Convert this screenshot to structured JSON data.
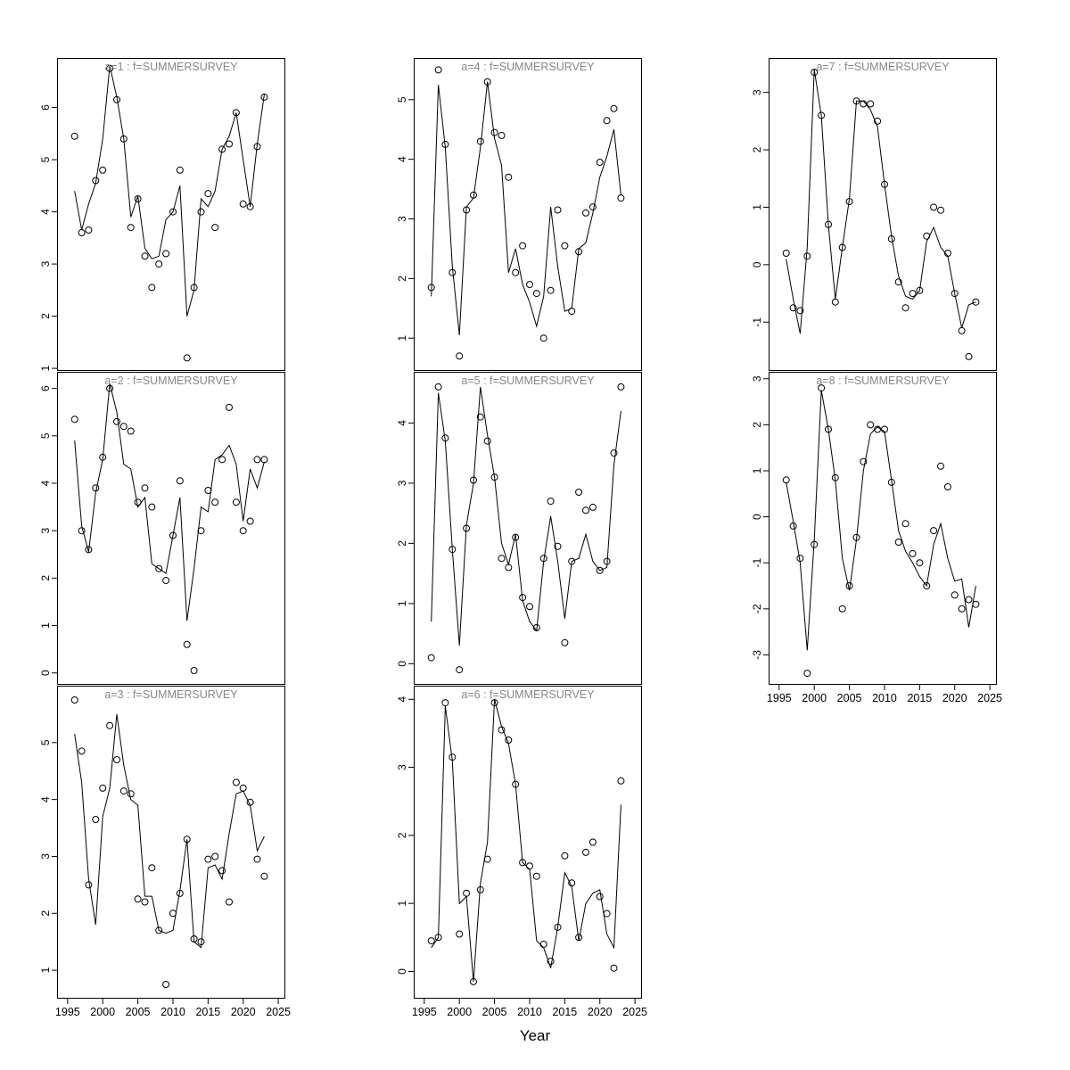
{
  "chart_data": {
    "type": "line+scatter",
    "xlabel": "Year",
    "x_ticks": [
      1995,
      2000,
      2005,
      2010,
      2015,
      2020,
      2025
    ],
    "xlim": [
      1993.5,
      2026
    ],
    "years": [
      1996,
      1997,
      1998,
      1999,
      2000,
      2001,
      2002,
      2003,
      2004,
      2005,
      2006,
      2007,
      2008,
      2009,
      2010,
      2011,
      2012,
      2013,
      2014,
      2015,
      2016,
      2017,
      2018,
      2019,
      2020,
      2021,
      2022,
      2023
    ],
    "colors": {
      "title": "#878787",
      "line": "#000000",
      "points": "#000000",
      "axis": "#000000"
    },
    "panels": [
      {
        "title": "a=1 : f=SUMMERSURVEY",
        "ylim": [
          0.95,
          6.95
        ],
        "yticks": [
          1,
          2,
          3,
          4,
          5,
          6
        ],
        "x_axis": false,
        "observed": [
          5.45,
          3.6,
          3.65,
          4.6,
          4.8,
          6.75,
          6.15,
          5.4,
          3.7,
          4.25,
          3.15,
          2.55,
          3.0,
          3.2,
          4.0,
          4.8,
          1.2,
          2.55,
          4.0,
          4.35,
          3.7,
          5.2,
          5.3,
          5.9,
          4.15,
          4.1,
          5.25,
          6.2
        ],
        "fitted": [
          4.4,
          3.65,
          4.15,
          4.55,
          5.4,
          6.8,
          6.2,
          5.4,
          3.9,
          4.3,
          3.3,
          3.1,
          3.15,
          3.85,
          4.0,
          4.5,
          2.0,
          2.5,
          4.25,
          4.1,
          4.4,
          5.2,
          5.45,
          5.9,
          5.0,
          4.1,
          5.3,
          6.25
        ]
      },
      {
        "title": "a=2 : f=SUMMERSURVEY",
        "ylim": [
          -0.25,
          6.35
        ],
        "yticks": [
          0,
          1,
          2,
          3,
          4,
          5,
          6
        ],
        "x_axis": false,
        "observed": [
          5.35,
          3.0,
          2.6,
          3.9,
          4.55,
          6.0,
          5.3,
          5.2,
          5.1,
          3.6,
          3.9,
          3.5,
          2.2,
          1.95,
          2.9,
          4.05,
          0.6,
          0.05,
          3.0,
          3.85,
          3.6,
          4.5,
          5.6,
          3.6,
          3.0,
          3.2,
          4.5,
          4.5
        ],
        "fitted": [
          4.9,
          3.1,
          2.55,
          3.8,
          4.5,
          6.1,
          5.5,
          4.4,
          4.3,
          3.5,
          3.7,
          2.3,
          2.2,
          2.1,
          2.9,
          3.7,
          1.1,
          2.2,
          3.5,
          3.4,
          4.5,
          4.6,
          4.8,
          4.4,
          3.2,
          4.3,
          3.9,
          4.45
        ]
      },
      {
        "title": "a=3 : f=SUMMERSURVEY",
        "ylim": [
          0.5,
          6.0
        ],
        "yticks": [
          1,
          2,
          3,
          4,
          5
        ],
        "x_axis": true,
        "observed": [
          5.75,
          4.85,
          2.5,
          3.65,
          4.2,
          5.3,
          4.7,
          4.15,
          4.1,
          2.25,
          2.2,
          2.8,
          1.7,
          0.75,
          2.0,
          2.35,
          3.3,
          1.55,
          1.5,
          2.95,
          3.0,
          2.75,
          2.2,
          4.3,
          4.2,
          3.95,
          2.95,
          2.65
        ],
        "fitted": [
          5.15,
          4.3,
          2.6,
          1.8,
          3.7,
          4.2,
          5.5,
          4.6,
          4.0,
          3.9,
          2.3,
          2.3,
          1.7,
          1.65,
          1.7,
          2.4,
          3.3,
          1.5,
          1.4,
          2.8,
          2.85,
          2.6,
          3.4,
          4.1,
          4.15,
          3.9,
          3.1,
          3.35
        ]
      },
      {
        "title": "a=4 : f=SUMMERSURVEY",
        "ylim": [
          0.45,
          5.7
        ],
        "yticks": [
          1,
          2,
          3,
          4,
          5
        ],
        "x_axis": false,
        "observed": [
          1.85,
          5.5,
          4.25,
          2.1,
          0.7,
          3.15,
          3.4,
          4.3,
          5.3,
          4.45,
          4.4,
          3.7,
          2.1,
          2.55,
          1.9,
          1.75,
          1.0,
          1.8,
          3.15,
          2.55,
          1.45,
          2.45,
          3.1,
          3.2,
          3.95,
          4.65,
          4.85,
          3.35
        ],
        "fitted": [
          1.7,
          5.25,
          4.2,
          2.2,
          1.05,
          3.2,
          3.35,
          4.2,
          5.3,
          4.35,
          3.9,
          2.1,
          2.5,
          1.9,
          1.6,
          1.2,
          1.7,
          3.2,
          2.2,
          1.45,
          1.5,
          2.5,
          2.6,
          3.1,
          3.7,
          4.05,
          4.5,
          3.4
        ]
      },
      {
        "title": "a=5 : f=SUMMERSURVEY",
        "ylim": [
          -0.35,
          4.85
        ],
        "yticks": [
          0,
          1,
          2,
          3,
          4
        ],
        "x_axis": false,
        "observed": [
          0.1,
          4.6,
          3.75,
          1.9,
          -0.1,
          2.25,
          3.05,
          4.1,
          3.7,
          3.1,
          1.75,
          1.6,
          2.1,
          1.1,
          0.95,
          0.6,
          1.75,
          2.7,
          1.95,
          0.35,
          1.7,
          2.85,
          2.55,
          2.6,
          1.55,
          1.7,
          3.5,
          4.6
        ],
        "fitted": [
          0.7,
          4.5,
          3.7,
          1.9,
          0.3,
          2.3,
          3.0,
          4.6,
          3.8,
          3.1,
          2.0,
          1.65,
          2.15,
          1.05,
          0.7,
          0.55,
          1.7,
          2.45,
          1.7,
          0.75,
          1.7,
          1.75,
          2.15,
          1.7,
          1.55,
          1.6,
          3.3,
          4.2
        ]
      },
      {
        "title": "a=6 : f=SUMMERSURVEY",
        "ylim": [
          -0.4,
          4.2
        ],
        "yticks": [
          0,
          1,
          2,
          3,
          4
        ],
        "x_axis": true,
        "observed": [
          0.45,
          0.5,
          3.95,
          3.15,
          0.55,
          1.15,
          -0.15,
          1.2,
          1.65,
          3.95,
          3.55,
          3.4,
          2.75,
          1.6,
          1.55,
          1.4,
          0.4,
          0.15,
          0.65,
          1.7,
          1.3,
          0.5,
          1.75,
          1.9,
          1.1,
          0.85,
          0.05,
          2.8
        ],
        "fitted": [
          0.35,
          0.5,
          3.9,
          3.1,
          1.0,
          1.1,
          -0.15,
          1.3,
          1.9,
          4.0,
          3.6,
          3.35,
          2.75,
          1.6,
          1.5,
          0.45,
          0.35,
          0.05,
          0.65,
          1.45,
          1.25,
          0.45,
          1.0,
          1.15,
          1.2,
          0.55,
          0.35,
          2.45
        ]
      },
      {
        "title": "a=7 : f=SUMMERSURVEY",
        "ylim": [
          -1.85,
          3.6
        ],
        "yticks": [
          -1,
          0,
          1,
          2,
          3
        ],
        "x_axis": false,
        "observed": [
          0.2,
          -0.75,
          -0.8,
          0.15,
          3.35,
          2.6,
          0.7,
          -0.65,
          0.3,
          1.1,
          2.85,
          2.8,
          2.8,
          2.5,
          1.4,
          0.45,
          -0.3,
          -0.75,
          -0.5,
          -0.45,
          0.5,
          1.0,
          0.95,
          0.2,
          -0.5,
          -1.15,
          -1.6,
          -0.65
        ],
        "fitted": [
          0.1,
          -0.6,
          -1.2,
          0.3,
          3.4,
          2.6,
          0.7,
          -0.6,
          0.3,
          1.15,
          2.85,
          2.85,
          2.7,
          2.4,
          1.4,
          0.5,
          -0.2,
          -0.55,
          -0.6,
          -0.45,
          0.4,
          0.65,
          0.3,
          0.15,
          -0.5,
          -1.1,
          -0.7,
          -0.65
        ]
      },
      {
        "title": "a=8 : f=SUMMERSURVEY",
        "ylim": [
          -3.65,
          3.15
        ],
        "yticks": [
          -3,
          -2,
          -1,
          0,
          1,
          2,
          3
        ],
        "x_axis": true,
        "observed": [
          0.8,
          -0.2,
          -0.9,
          -3.4,
          -0.6,
          2.8,
          1.9,
          0.85,
          -2.0,
          -1.5,
          -0.45,
          1.2,
          2.0,
          1.9,
          1.9,
          0.75,
          -0.55,
          -0.15,
          -0.8,
          -1.0,
          -1.5,
          -0.3,
          1.1,
          0.65,
          -1.7,
          -2.0,
          -1.8,
          -1.9
        ],
        "fitted": [
          0.75,
          -0.1,
          -1.0,
          -2.9,
          -0.5,
          2.75,
          1.9,
          0.8,
          -0.9,
          -1.6,
          -0.5,
          1.0,
          1.8,
          1.95,
          1.85,
          0.8,
          -0.3,
          -0.75,
          -1.0,
          -1.3,
          -1.5,
          -0.6,
          -0.15,
          -0.9,
          -1.4,
          -1.35,
          -2.4,
          -1.5
        ]
      }
    ]
  }
}
